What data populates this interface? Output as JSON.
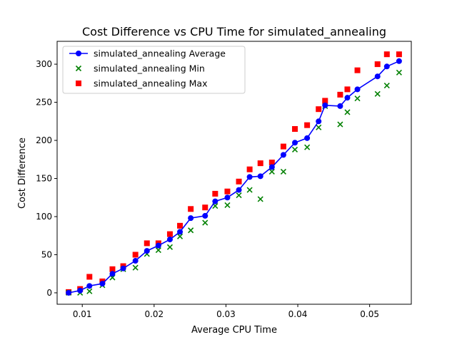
{
  "chart_data": {
    "type": "line",
    "title": "Cost Difference vs CPU Time for simulated_annealing",
    "xlabel": "Average CPU Time",
    "ylabel": "Cost Difference",
    "xlim": [
      0.0065,
      0.0558
    ],
    "ylim": [
      -15,
      330
    ],
    "xticks": [
      0.01,
      0.02,
      0.03,
      0.04,
      0.05
    ],
    "xtick_labels": [
      "0.01",
      "0.02",
      "0.03",
      "0.04",
      "0.05"
    ],
    "yticks": [
      0,
      50,
      100,
      150,
      200,
      250,
      300
    ],
    "ytick_labels": [
      "0",
      "50",
      "100",
      "150",
      "200",
      "250",
      "300"
    ],
    "grid": false,
    "legend_position": "upper-left",
    "series": [
      {
        "name": "simulated_annealing Average",
        "kind": "line-marker",
        "color": "#0000ff",
        "x": [
          0.0081,
          0.0097,
          0.011,
          0.0128,
          0.0142,
          0.0157,
          0.0174,
          0.019,
          0.0206,
          0.0222,
          0.0236,
          0.0251,
          0.0271,
          0.0285,
          0.0302,
          0.0318,
          0.0333,
          0.0348,
          0.0364,
          0.038,
          0.0396,
          0.0413,
          0.0429,
          0.0438,
          0.0459,
          0.0469,
          0.0483,
          0.0511,
          0.0524,
          0.0541
        ],
        "y": [
          0,
          3,
          9,
          12,
          25,
          32,
          42,
          55,
          62,
          70,
          80,
          98,
          101,
          120,
          125,
          135,
          152,
          153,
          165,
          181,
          197,
          203,
          225,
          246,
          245,
          256,
          267,
          284,
          297,
          304
        ]
      },
      {
        "name": "simulated_annealing Min",
        "kind": "scatter-x",
        "color": "#008000",
        "x": [
          0.0081,
          0.0097,
          0.011,
          0.0128,
          0.0142,
          0.0157,
          0.0174,
          0.019,
          0.0206,
          0.0222,
          0.0236,
          0.0251,
          0.0271,
          0.0285,
          0.0302,
          0.0318,
          0.0333,
          0.0348,
          0.0364,
          0.038,
          0.0396,
          0.0413,
          0.0429,
          0.0438,
          0.0459,
          0.0469,
          0.0483,
          0.0511,
          0.0524,
          0.0541
        ],
        "y": [
          0,
          0,
          2,
          10,
          20,
          31,
          33,
          51,
          56,
          60,
          74,
          82,
          92,
          114,
          115,
          128,
          135,
          123,
          159,
          159,
          188,
          191,
          217,
          245,
          221,
          237,
          255,
          261,
          272,
          289
        ]
      },
      {
        "name": "simulated_annealing Max",
        "kind": "scatter-square",
        "color": "#ff0000",
        "x": [
          0.0081,
          0.0097,
          0.011,
          0.0128,
          0.0142,
          0.0157,
          0.0174,
          0.019,
          0.0206,
          0.0222,
          0.0236,
          0.0251,
          0.0271,
          0.0285,
          0.0302,
          0.0318,
          0.0333,
          0.0348,
          0.0364,
          0.038,
          0.0396,
          0.0413,
          0.0429,
          0.0438,
          0.0459,
          0.0469,
          0.0483,
          0.0511,
          0.0524,
          0.0541
        ],
        "y": [
          1,
          5,
          21,
          15,
          31,
          35,
          50,
          65,
          65,
          77,
          88,
          110,
          112,
          130,
          133,
          146,
          162,
          170,
          171,
          192,
          215,
          220,
          241,
          252,
          260,
          267,
          292,
          300,
          313,
          313
        ]
      }
    ]
  }
}
